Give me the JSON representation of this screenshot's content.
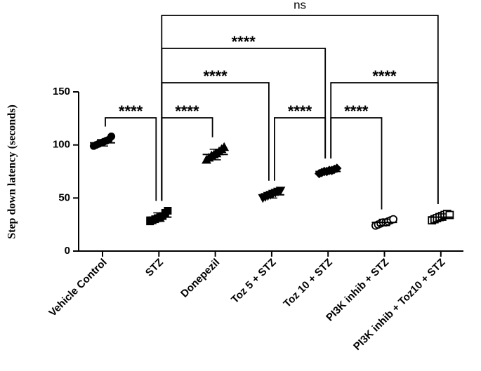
{
  "chart_data": {
    "type": "dot",
    "y_label": "Step down latency (seconds)",
    "categories": [
      "Vehicle Control",
      "STZ",
      "Donepezil",
      "Toz 5 + STZ",
      "Toz 10 + STZ",
      "PI3K inhib + STZ",
      "PI3K inhib + Toz10 + STZ"
    ],
    "markers": [
      "circle",
      "square",
      "triangle",
      "triangle-down",
      "diamond",
      "open-circle",
      "open-square"
    ],
    "color": "#000000",
    "values": [
      [
        99,
        100,
        101,
        102,
        103,
        104,
        105,
        108
      ],
      [
        28,
        29,
        30,
        31,
        32,
        33,
        36,
        38
      ],
      [
        86,
        88,
        90,
        91,
        92,
        94,
        96,
        98
      ],
      [
        50,
        51,
        52,
        53,
        54,
        55,
        56,
        57
      ],
      [
        73,
        74,
        75,
        75,
        76,
        76,
        77,
        78
      ],
      [
        24,
        25,
        26,
        27,
        27,
        28,
        29,
        30
      ],
      [
        29,
        30,
        31,
        32,
        33,
        34,
        35,
        34
      ]
    ],
    "means": [
      102,
      32,
      91,
      53,
      75,
      27,
      32
    ],
    "sds": [
      3,
      4,
      5,
      3,
      2,
      3,
      3
    ],
    "ylim": [
      0,
      150
    ],
    "yticks": [
      0,
      50,
      100,
      150
    ],
    "annotations": [
      {
        "from": 0,
        "to": 1,
        "label": "****"
      },
      {
        "from": 1,
        "to": 2,
        "label": "****"
      },
      {
        "from": 3,
        "to": 4,
        "label": "****"
      },
      {
        "from": 4,
        "to": 5,
        "label": "****"
      },
      {
        "from": 1,
        "to": 3,
        "label": "****"
      },
      {
        "from": 4,
        "to": 6,
        "label": "****"
      },
      {
        "from": 1,
        "to": 4,
        "label": "****"
      },
      {
        "from": 1,
        "to": 6,
        "label": "ns"
      }
    ]
  }
}
